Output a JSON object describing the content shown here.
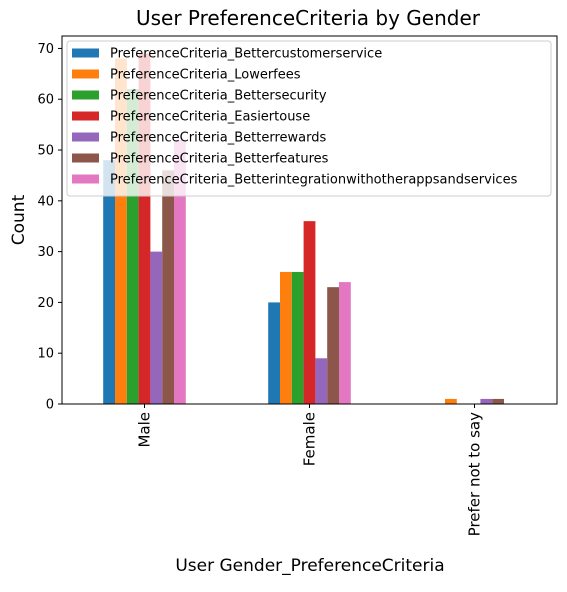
{
  "chart_data": {
    "type": "bar",
    "title": "User PreferenceCriteria by Gender",
    "xlabel": "User Gender_PreferenceCriteria",
    "ylabel": "Count",
    "categories": [
      "Male",
      "Female",
      "Prefer not to say"
    ],
    "ylim": [
      0,
      72.45
    ],
    "yticks": [
      0,
      10,
      20,
      30,
      40,
      50,
      60,
      70
    ],
    "grid": false,
    "legend_position": "top-left",
    "series": [
      {
        "name": "PreferenceCriteria_Bettercustomerservice",
        "color": "#1f77b4",
        "values": [
          48,
          20,
          0
        ]
      },
      {
        "name": "PreferenceCriteria_Lowerfees",
        "color": "#ff7f0e",
        "values": [
          68,
          26,
          1
        ]
      },
      {
        "name": "PreferenceCriteria_Bettersecurity",
        "color": "#2ca02c",
        "values": [
          62,
          26,
          0
        ]
      },
      {
        "name": "PreferenceCriteria_Easiertouse",
        "color": "#d62728",
        "values": [
          69,
          36,
          0
        ]
      },
      {
        "name": "PreferenceCriteria_Betterrewards",
        "color": "#9467bd",
        "values": [
          30,
          9,
          1
        ]
      },
      {
        "name": "PreferenceCriteria_Betterfeatures",
        "color": "#8c564b",
        "values": [
          46,
          23,
          1
        ]
      },
      {
        "name": "PreferenceCriteria_Betterintegrationwithotherappsandservices",
        "color": "#e377c2",
        "values": [
          52,
          24,
          0
        ]
      }
    ]
  }
}
